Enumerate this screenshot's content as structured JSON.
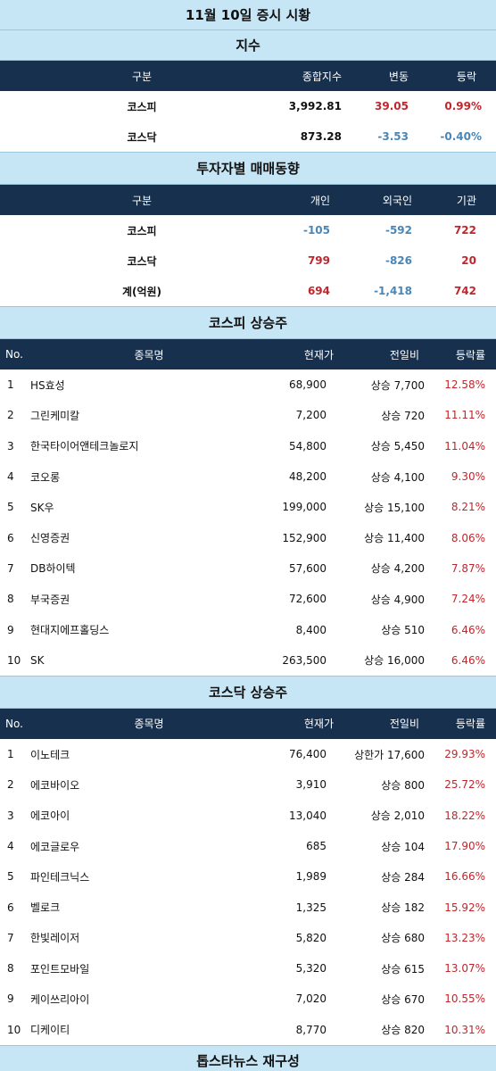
{
  "title": "11월 10일 증시 시황",
  "index": {
    "heading": "지수",
    "headers": [
      "구분",
      "종합지수",
      "변동",
      "등락"
    ],
    "rows": [
      {
        "name": "코스피",
        "value": "3,992.81",
        "change": "39.05",
        "rate": "0.99%",
        "dir": "up"
      },
      {
        "name": "코스닥",
        "value": "873.28",
        "change": "-3.53",
        "rate": "-0.40%",
        "dir": "down"
      }
    ]
  },
  "investor": {
    "heading": "투자자별 매매동향",
    "headers": [
      "구분",
      "개인",
      "외국인",
      "기관"
    ],
    "rows": [
      {
        "name": "코스피",
        "individual": "-105",
        "foreign": "-592",
        "institution": "722"
      },
      {
        "name": "코스닥",
        "individual": "799",
        "foreign": "-826",
        "institution": "20"
      },
      {
        "name": "계(억원)",
        "individual": "694",
        "foreign": "-1,418",
        "institution": "742"
      }
    ]
  },
  "kospi": {
    "heading": "코스피 상승주",
    "headers": [
      "No.",
      "종목명",
      "현재가",
      "전일비",
      "등락률"
    ],
    "rows": [
      {
        "no": "1",
        "name": "HS효성",
        "price": "68,900",
        "change": "상승 7,700",
        "rate": "12.58%"
      },
      {
        "no": "2",
        "name": "그린케미칼",
        "price": "7,200",
        "change": "상승 720",
        "rate": "11.11%"
      },
      {
        "no": "3",
        "name": "한국타이어앤테크놀로지",
        "price": "54,800",
        "change": "상승 5,450",
        "rate": "11.04%"
      },
      {
        "no": "4",
        "name": "코오롱",
        "price": "48,200",
        "change": "상승 4,100",
        "rate": "9.30%"
      },
      {
        "no": "5",
        "name": "SK우",
        "price": "199,000",
        "change": "상승 15,100",
        "rate": "8.21%"
      },
      {
        "no": "6",
        "name": "신영증권",
        "price": "152,900",
        "change": "상승 11,400",
        "rate": "8.06%"
      },
      {
        "no": "7",
        "name": "DB하이텍",
        "price": "57,600",
        "change": "상승 4,200",
        "rate": "7.87%"
      },
      {
        "no": "8",
        "name": "부국증권",
        "price": "72,600",
        "change": "상승 4,900",
        "rate": "7.24%"
      },
      {
        "no": "9",
        "name": "현대지에프홀딩스",
        "price": "8,400",
        "change": "상승 510",
        "rate": "6.46%"
      },
      {
        "no": "10",
        "name": "SK",
        "price": "263,500",
        "change": "상승 16,000",
        "rate": "6.46%"
      }
    ]
  },
  "kosdaq": {
    "heading": "코스닥 상승주",
    "headers": [
      "No.",
      "종목명",
      "현재가",
      "전일비",
      "등락률"
    ],
    "rows": [
      {
        "no": "1",
        "name": "이노테크",
        "price": "76,400",
        "change": "상한가 17,600",
        "rate": "29.93%"
      },
      {
        "no": "2",
        "name": "에코바이오",
        "price": "3,910",
        "change": "상승 800",
        "rate": "25.72%"
      },
      {
        "no": "3",
        "name": "에코아이",
        "price": "13,040",
        "change": "상승 2,010",
        "rate": "18.22%"
      },
      {
        "no": "4",
        "name": "에코글로우",
        "price": "685",
        "change": "상승 104",
        "rate": "17.90%"
      },
      {
        "no": "5",
        "name": "파인테크닉스",
        "price": "1,989",
        "change": "상승 284",
        "rate": "16.66%"
      },
      {
        "no": "6",
        "name": "벨로크",
        "price": "1,325",
        "change": "상승 182",
        "rate": "15.92%"
      },
      {
        "no": "7",
        "name": "한빛레이저",
        "price": "5,820",
        "change": "상승 680",
        "rate": "13.23%"
      },
      {
        "no": "8",
        "name": "포인트모바일",
        "price": "5,320",
        "change": "상승 615",
        "rate": "13.07%"
      },
      {
        "no": "9",
        "name": "케이쓰리아이",
        "price": "7,020",
        "change": "상승 670",
        "rate": "10.55%"
      },
      {
        "no": "10",
        "name": "디케이티",
        "price": "8,770",
        "change": "상승 820",
        "rate": "10.31%"
      }
    ]
  },
  "footer": "톱스타뉴스 재구성",
  "colors": {
    "up": "#c0262c",
    "down": "#4a86b6",
    "header_bg": "#17304e",
    "band_bg": "#c6e5f5"
  }
}
